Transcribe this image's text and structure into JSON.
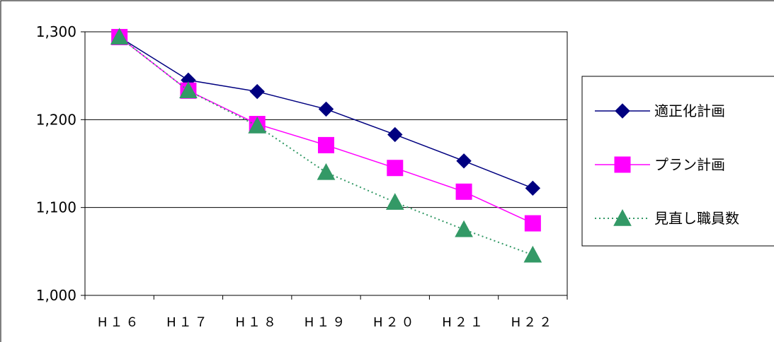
{
  "chart_data": {
    "type": "line",
    "categories": [
      "H１６",
      "H１７",
      "H１８",
      "H１９",
      "H２０",
      "H２１",
      "H２２"
    ],
    "y_tick_labels": [
      "1,000",
      "1,100",
      "1,200",
      "1,300"
    ],
    "y_ticks": [
      1000,
      1100,
      1200,
      1300
    ],
    "ylim": [
      1000,
      1300
    ],
    "grid": true,
    "legend_position": "right",
    "series": [
      {
        "name": "適正化計画",
        "values": [
          1294,
          1245,
          1232,
          1212,
          1183,
          1153,
          1122
        ],
        "color": "#000080",
        "marker": "diamond",
        "line_style": "solid"
      },
      {
        "name": "プラン計画",
        "values": [
          1294,
          1233,
          1195,
          1171,
          1145,
          1118,
          1082
        ],
        "color": "#ff00ff",
        "marker": "square",
        "line_style": "solid"
      },
      {
        "name": "見直し職員数",
        "values": [
          1294,
          1233,
          1193,
          1140,
          1106,
          1075,
          1046
        ],
        "color": "#339966",
        "marker": "triangle",
        "line_style": "dotted"
      }
    ]
  }
}
